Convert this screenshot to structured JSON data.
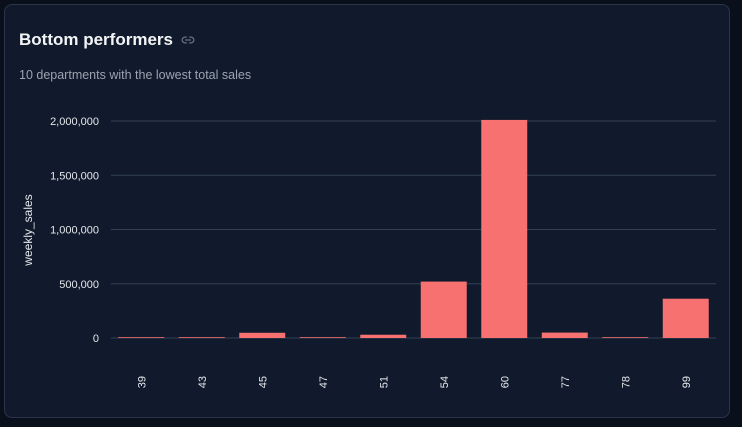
{
  "card": {
    "title": "Bottom performers",
    "subtitle": "10 departments with the lowest total sales",
    "link_icon": "link-icon"
  },
  "chart_data": {
    "type": "bar",
    "categories": [
      "39",
      "43",
      "45",
      "47",
      "51",
      "54",
      "60",
      "77",
      "78",
      "99"
    ],
    "series": [
      {
        "values": [
          200,
          1200,
          48000,
          6000,
          30000,
          520000,
          2010000,
          50000,
          4000,
          362000
        ],
        "color": "#f87171"
      }
    ],
    "xlabel": "",
    "ylabel": "weekly_sales",
    "ylim": [
      0,
      2000000
    ],
    "yticks": [
      0,
      500000,
      1000000,
      1500000,
      2000000
    ],
    "ytick_labels": [
      "0",
      "500,000",
      "1,000,000",
      "1,500,000",
      "2,000,000"
    ],
    "grid": true,
    "legend": "none"
  },
  "colors": {
    "background": "#111a2c",
    "gridline": "#334155",
    "bar": "#f87171",
    "text": "#e5e7eb"
  }
}
